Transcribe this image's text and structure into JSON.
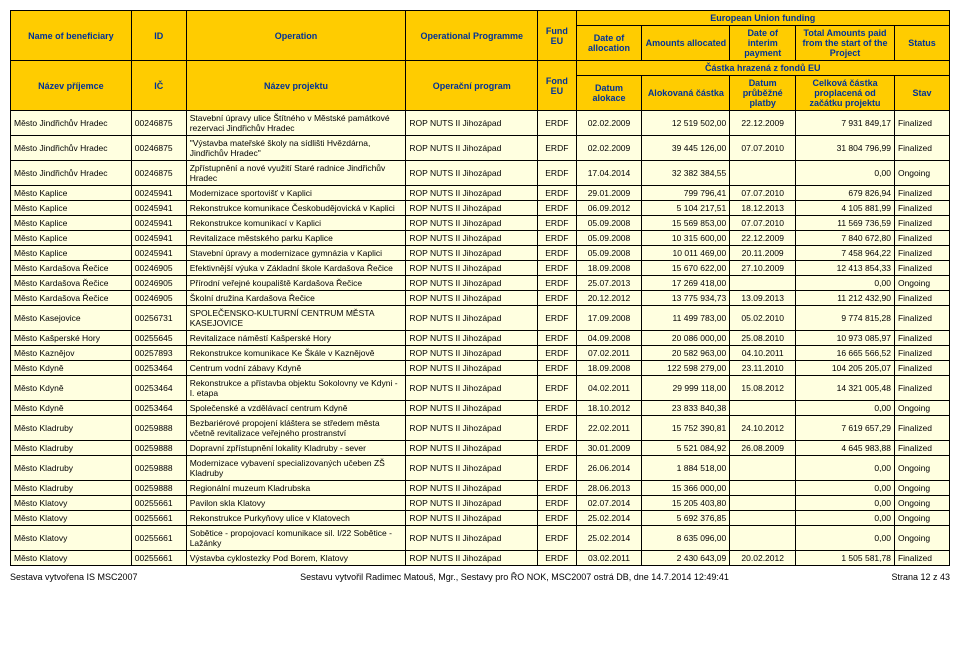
{
  "header": {
    "eu_funding": "European Union funding",
    "name_ben_en": "Name of beneficiary",
    "id_en": "ID",
    "operation_en": "Operation",
    "op_programme": "Operational Programme",
    "fund_eu": "Fund EU",
    "date_alloc": "Date of allocation",
    "amts_alloc": "Amounts allocated",
    "date_interim": "Date of interim payment",
    "total_paid": "Total Amounts paid from the start of the Project",
    "status": "Status",
    "castka_hrazena": "Částka hrazená z fondů EU",
    "nazev_prijemce": "Název příjemce",
    "ic": "IČ",
    "nazev_projektu": "Název projektu",
    "operacni_program": "Operační program",
    "fond_eu": "Fond EU",
    "datum_alokace": "Datum alokace",
    "alokovana_castka": "Alokovaná částka",
    "datum_prub": "Datum průběžné platby",
    "celkova_castka": "Celková částka proplacená od začátku projektu",
    "stav": "Stav"
  },
  "rows": [
    {
      "ben": "Město Jindřichův Hradec",
      "id": "00246875",
      "op": "Stavební úpravy ulice Štítného v Městské památkové rezervaci Jindřichův Hradec",
      "prog": "ROP NUTS II Jihozápad",
      "fund": "ERDF",
      "d1": "02.02.2009",
      "amt": "12 519 502,00",
      "d2": "22.12.2009",
      "tot": "7 931 849,17",
      "st": "Finalized"
    },
    {
      "ben": "Město Jindřichův Hradec",
      "id": "00246875",
      "op": "\"Výstavba mateřské školy na sídlišti Hvězdárna, Jindřichův Hradec\"",
      "prog": "ROP NUTS II Jihozápad",
      "fund": "ERDF",
      "d1": "02.02.2009",
      "amt": "39 445 126,00",
      "d2": "07.07.2010",
      "tot": "31 804 796,99",
      "st": "Finalized"
    },
    {
      "ben": "Město Jindřichův Hradec",
      "id": "00246875",
      "op": "Zpřístupnění a nové využití Staré radnice Jindřichův Hradec",
      "prog": "ROP NUTS II Jihozápad",
      "fund": "ERDF",
      "d1": "17.04.2014",
      "amt": "32 382 384,55",
      "d2": "",
      "tot": "0,00",
      "st": "Ongoing"
    },
    {
      "ben": "Město Kaplice",
      "id": "00245941",
      "op": "Modernizace sportovišť v Kaplici",
      "prog": "ROP NUTS II Jihozápad",
      "fund": "ERDF",
      "d1": "29.01.2009",
      "amt": "799 796,41",
      "d2": "07.07.2010",
      "tot": "679 826,94",
      "st": "Finalized"
    },
    {
      "ben": "Město Kaplice",
      "id": "00245941",
      "op": "Rekonstrukce komunikace Českobudějovická v Kaplici",
      "prog": "ROP NUTS II Jihozápad",
      "fund": "ERDF",
      "d1": "06.09.2012",
      "amt": "5 104 217,51",
      "d2": "18.12.2013",
      "tot": "4 105 881,99",
      "st": "Finalized"
    },
    {
      "ben": "Město Kaplice",
      "id": "00245941",
      "op": "Rekonstrukce komunikací v Kaplici",
      "prog": "ROP NUTS II Jihozápad",
      "fund": "ERDF",
      "d1": "05.09.2008",
      "amt": "15 569 853,00",
      "d2": "07.07.2010",
      "tot": "11 569 736,59",
      "st": "Finalized"
    },
    {
      "ben": "Město Kaplice",
      "id": "00245941",
      "op": "Revitalizace městského parku Kaplice",
      "prog": "ROP NUTS II Jihozápad",
      "fund": "ERDF",
      "d1": "05.09.2008",
      "amt": "10 315 600,00",
      "d2": "22.12.2009",
      "tot": "7 840 672,80",
      "st": "Finalized"
    },
    {
      "ben": "Město Kaplice",
      "id": "00245941",
      "op": "Stavební úpravy a modernizace gymnázia v Kaplici",
      "prog": "ROP NUTS II Jihozápad",
      "fund": "ERDF",
      "d1": "05.09.2008",
      "amt": "10 011 469,00",
      "d2": "20.11.2009",
      "tot": "7 458 964,22",
      "st": "Finalized"
    },
    {
      "ben": "Město Kardašova Řečice",
      "id": "00246905",
      "op": "Efektivnější výuka v Základní škole Kardašova Řečice",
      "prog": "ROP NUTS II Jihozápad",
      "fund": "ERDF",
      "d1": "18.09.2008",
      "amt": "15 670 622,00",
      "d2": "27.10.2009",
      "tot": "12 413 854,33",
      "st": "Finalized"
    },
    {
      "ben": "Město Kardašova Řečice",
      "id": "00246905",
      "op": "Přírodní veřejné koupaliště Kardašova Řečice",
      "prog": "ROP NUTS II Jihozápad",
      "fund": "ERDF",
      "d1": "25.07.2013",
      "amt": "17 269 418,00",
      "d2": "",
      "tot": "0,00",
      "st": "Ongoing"
    },
    {
      "ben": "Město Kardašova Řečice",
      "id": "00246905",
      "op": "Školní družina Kardašova Řečice",
      "prog": "ROP NUTS II Jihozápad",
      "fund": "ERDF",
      "d1": "20.12.2012",
      "amt": "13 775 934,73",
      "d2": "13.09.2013",
      "tot": "11 212 432,90",
      "st": "Finalized"
    },
    {
      "ben": "Město Kasejovice",
      "id": "00256731",
      "op": "SPOLEČENSKO-KULTURNÍ CENTRUM MĚSTA KASEJOVICE",
      "prog": "ROP NUTS II Jihozápad",
      "fund": "ERDF",
      "d1": "17.09.2008",
      "amt": "11 499 783,00",
      "d2": "05.02.2010",
      "tot": "9 774 815,28",
      "st": "Finalized"
    },
    {
      "ben": "Město Kašperské Hory",
      "id": "00255645",
      "op": "Revitalizace náměstí Kašperské Hory",
      "prog": "ROP NUTS II Jihozápad",
      "fund": "ERDF",
      "d1": "04.09.2008",
      "amt": "20 086 000,00",
      "d2": "25.08.2010",
      "tot": "10 973 085,97",
      "st": "Finalized"
    },
    {
      "ben": "Město Kaznějov",
      "id": "00257893",
      "op": "Rekonstrukce komunikace Ke Škále v Kaznějově",
      "prog": "ROP NUTS II Jihozápad",
      "fund": "ERDF",
      "d1": "07.02.2011",
      "amt": "20 582 963,00",
      "d2": "04.10.2011",
      "tot": "16 665 566,52",
      "st": "Finalized"
    },
    {
      "ben": "Město Kdyně",
      "id": "00253464",
      "op": "Centrum vodní zábavy Kdyně",
      "prog": "ROP NUTS II Jihozápad",
      "fund": "ERDF",
      "d1": "18.09.2008",
      "amt": "122 598 279,00",
      "d2": "23.11.2010",
      "tot": "104 205 205,07",
      "st": "Finalized"
    },
    {
      "ben": "Město Kdyně",
      "id": "00253464",
      "op": "Rekonstrukce a přístavba objektu Sokolovny ve Kdyni - I. etapa",
      "prog": "ROP NUTS II Jihozápad",
      "fund": "ERDF",
      "d1": "04.02.2011",
      "amt": "29 999 118,00",
      "d2": "15.08.2012",
      "tot": "14 321 005,48",
      "st": "Finalized"
    },
    {
      "ben": "Město Kdyně",
      "id": "00253464",
      "op": "Společenské a vzdělávací centrum Kdyně",
      "prog": "ROP NUTS II Jihozápad",
      "fund": "ERDF",
      "d1": "18.10.2012",
      "amt": "23 833 840,38",
      "d2": "",
      "tot": "0,00",
      "st": "Ongoing"
    },
    {
      "ben": "Město Kladruby",
      "id": "00259888",
      "op": "Bezbariérové propojení kláštera se středem města včetně revitalizace veřejného prostranství",
      "prog": "ROP NUTS II Jihozápad",
      "fund": "ERDF",
      "d1": "22.02.2011",
      "amt": "15 752 390,81",
      "d2": "24.10.2012",
      "tot": "7 619 657,29",
      "st": "Finalized"
    },
    {
      "ben": "Město Kladruby",
      "id": "00259888",
      "op": "Dopravní zpřístupnění lokality Kladruby - sever",
      "prog": "ROP NUTS II Jihozápad",
      "fund": "ERDF",
      "d1": "30.01.2009",
      "amt": "5 521 084,92",
      "d2": "26.08.2009",
      "tot": "4 645 983,88",
      "st": "Finalized"
    },
    {
      "ben": "Město Kladruby",
      "id": "00259888",
      "op": "Modernizace vybavení specializovaných učeben ZŠ Kladruby",
      "prog": "ROP NUTS II Jihozápad",
      "fund": "ERDF",
      "d1": "26.06.2014",
      "amt": "1 884 518,00",
      "d2": "",
      "tot": "0,00",
      "st": "Ongoing"
    },
    {
      "ben": "Město Kladruby",
      "id": "00259888",
      "op": "Regionální muzeum Kladrubska",
      "prog": "ROP NUTS II Jihozápad",
      "fund": "ERDF",
      "d1": "28.06.2013",
      "amt": "15 366 000,00",
      "d2": "",
      "tot": "0,00",
      "st": "Ongoing"
    },
    {
      "ben": "Město Klatovy",
      "id": "00255661",
      "op": "Pavilon skla Klatovy",
      "prog": "ROP NUTS II Jihozápad",
      "fund": "ERDF",
      "d1": "02.07.2014",
      "amt": "15 205 403,80",
      "d2": "",
      "tot": "0,00",
      "st": "Ongoing"
    },
    {
      "ben": "Město Klatovy",
      "id": "00255661",
      "op": "Rekonstrukce Purkyňovy ulice v Klatovech",
      "prog": "ROP NUTS II Jihozápad",
      "fund": "ERDF",
      "d1": "25.02.2014",
      "amt": "5 692 376,85",
      "d2": "",
      "tot": "0,00",
      "st": "Ongoing"
    },
    {
      "ben": "Město Klatovy",
      "id": "00255661",
      "op": "Sobětice - propojovací komunikace sil. I/22 Sobětice - Lažánky",
      "prog": "ROP NUTS II Jihozápad",
      "fund": "ERDF",
      "d1": "25.02.2014",
      "amt": "8 635 096,00",
      "d2": "",
      "tot": "0,00",
      "st": "Ongoing"
    },
    {
      "ben": "Město Klatovy",
      "id": "00255661",
      "op": "Výstavba cyklostezky Pod Borem, Klatovy",
      "prog": "ROP NUTS II Jihozápad",
      "fund": "ERDF",
      "d1": "03.02.2011",
      "amt": "2 430 643,09",
      "d2": "20.02.2012",
      "tot": "1 505 581,78",
      "st": "Finalized"
    }
  ],
  "footer": {
    "left": "Sestava vytvořena IS MSC2007",
    "center": "Sestavu vytvořil Radimec Matouš, Mgr., Sestavy pro ŘO NOK, MSC2007 ostrá DB, dne 14.7.2014 12:49:41",
    "right": "Strana 12 z 43"
  }
}
